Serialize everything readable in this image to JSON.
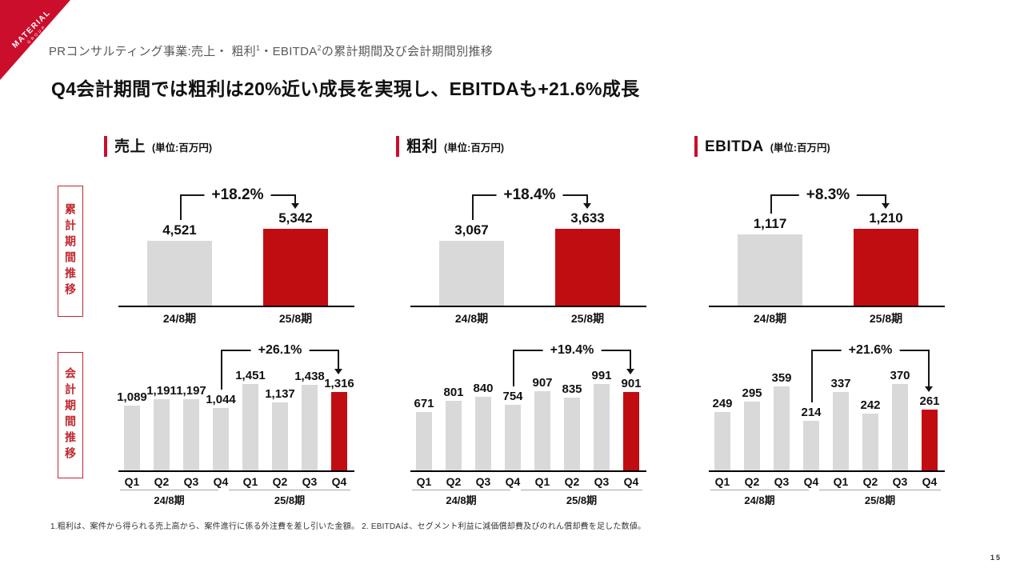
{
  "logo": {
    "line1": "MATERIAL",
    "line2": "GROUP"
  },
  "header": {
    "subtitle_parts": [
      "PRコンサルティング事業:売上・ 粗利",
      "1",
      "・EBITDA",
      "2",
      "の累計期間及び会計期間別推移"
    ],
    "title": "Q4会計期間では粗利は20%近い成長を実現し、EBITDAも+21.6%成長"
  },
  "row_labels": [
    "累計期間推移",
    "会計期間推移"
  ],
  "sections": [
    {
      "title": "売上",
      "unit": "(単位:百万円)"
    },
    {
      "title": "粗利",
      "unit": "(単位:百万円)"
    },
    {
      "title": "EBITDA",
      "unit": "(単位:百万円)"
    }
  ],
  "colors": {
    "accent_red": "#cb0e2c",
    "bar_red": "#c00d11",
    "bar_gray": "#d9d9d9",
    "subtitle_gray": "#595959"
  },
  "footnote": "1.粗利は、案件から得られる売上高から、案件進行に係る外注費を差し引いた金額。 2. EBITDAは、セグメント利益に減価償却費及びのれん償却費を足した数値。",
  "page_number": "15",
  "chart_data": [
    {
      "id": "sales-cumulative",
      "type": "bar",
      "section": "売上",
      "row": "累計期間推移",
      "unit": "百万円",
      "categories": [
        "24/8期",
        "25/8期"
      ],
      "values": [
        4521,
        5342
      ],
      "value_labels": [
        "4,521",
        "5,342"
      ],
      "highlight_index": 1,
      "growth": {
        "label": "+18.2%",
        "from": 0,
        "to": 1
      },
      "ylim": [
        0,
        5342
      ]
    },
    {
      "id": "grossprofit-cumulative",
      "type": "bar",
      "section": "粗利",
      "row": "累計期間推移",
      "unit": "百万円",
      "categories": [
        "24/8期",
        "25/8期"
      ],
      "values": [
        3067,
        3633
      ],
      "value_labels": [
        "3,067",
        "3,633"
      ],
      "highlight_index": 1,
      "growth": {
        "label": "+18.4%",
        "from": 0,
        "to": 1
      },
      "ylim": [
        0,
        3633
      ]
    },
    {
      "id": "ebitda-cumulative",
      "type": "bar",
      "section": "EBITDA",
      "row": "累計期間推移",
      "unit": "百万円",
      "categories": [
        "24/8期",
        "25/8期"
      ],
      "values": [
        1117,
        1210
      ],
      "value_labels": [
        "1,117",
        "1,210"
      ],
      "highlight_index": 1,
      "growth": {
        "label": "+8.3%",
        "from": 0,
        "to": 1
      },
      "ylim": [
        0,
        1210
      ]
    },
    {
      "id": "sales-quarterly",
      "type": "bar",
      "section": "売上",
      "row": "会計期間推移",
      "unit": "百万円",
      "categories": [
        "Q1",
        "Q2",
        "Q3",
        "Q4",
        "Q1",
        "Q2",
        "Q3",
        "Q4"
      ],
      "groups": [
        "24/8期",
        "25/8期"
      ],
      "values": [
        1089,
        1191,
        1197,
        1044,
        1451,
        1137,
        1438,
        1316
      ],
      "value_labels": [
        "1,089",
        "1,191",
        "1,197",
        "1,044",
        "1,451",
        "1,137",
        "1,438",
        "1,316"
      ],
      "highlight_index": 7,
      "growth": {
        "label": "+26.1%",
        "from": 3,
        "to": 7
      },
      "ylim": [
        0,
        1451
      ]
    },
    {
      "id": "grossprofit-quarterly",
      "type": "bar",
      "section": "粗利",
      "row": "会計期間推移",
      "unit": "百万円",
      "categories": [
        "Q1",
        "Q2",
        "Q3",
        "Q4",
        "Q1",
        "Q2",
        "Q3",
        "Q4"
      ],
      "groups": [
        "24/8期",
        "25/8期"
      ],
      "values": [
        671,
        801,
        840,
        754,
        907,
        835,
        991,
        901
      ],
      "value_labels": [
        "671",
        "801",
        "840",
        "754",
        "907",
        "835",
        "991",
        "901"
      ],
      "highlight_index": 7,
      "growth": {
        "label": "+19.4%",
        "from": 3,
        "to": 7
      },
      "ylim": [
        0,
        991
      ]
    },
    {
      "id": "ebitda-quarterly",
      "type": "bar",
      "section": "EBITDA",
      "row": "会計期間推移",
      "unit": "百万円",
      "categories": [
        "Q1",
        "Q2",
        "Q3",
        "Q4",
        "Q1",
        "Q2",
        "Q3",
        "Q4"
      ],
      "groups": [
        "24/8期",
        "25/8期"
      ],
      "values": [
        249,
        295,
        359,
        214,
        337,
        242,
        370,
        261
      ],
      "value_labels": [
        "249",
        "295",
        "359",
        "214",
        "337",
        "242",
        "370",
        "261"
      ],
      "highlight_index": 7,
      "growth": {
        "label": "+21.6%",
        "from": 3,
        "to": 7
      },
      "ylim": [
        0,
        370
      ]
    }
  ]
}
